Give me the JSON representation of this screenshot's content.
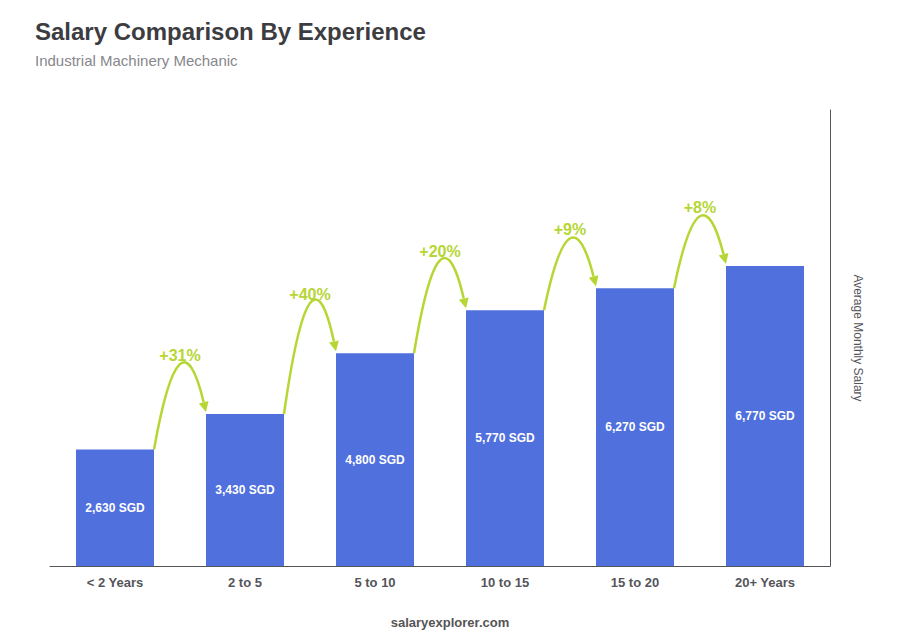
{
  "chart_data": {
    "type": "bar",
    "title": "Salary Comparison By Experience",
    "subtitle": "Industrial Machinery Mechanic",
    "ylabel": "Average Monthly Salary",
    "footer": "salaryexplorer.com",
    "categories": [
      "< 2 Years",
      "2 to 5",
      "5 to 10",
      "10 to 15",
      "15 to 20",
      "20+ Years"
    ],
    "values": [
      2630,
      3430,
      4800,
      5770,
      6270,
      6770
    ],
    "value_labels": [
      "2,630 SGD",
      "3,430 SGD",
      "4,800 SGD",
      "5,770 SGD",
      "6,270 SGD",
      "6,770 SGD"
    ],
    "data_labels": true,
    "annotations": [
      "+31%",
      "+40%",
      "+20%",
      "+9%",
      "+8%"
    ],
    "ylim": [
      0,
      10290.4
    ],
    "tick_labels": "x",
    "grid": false
  }
}
